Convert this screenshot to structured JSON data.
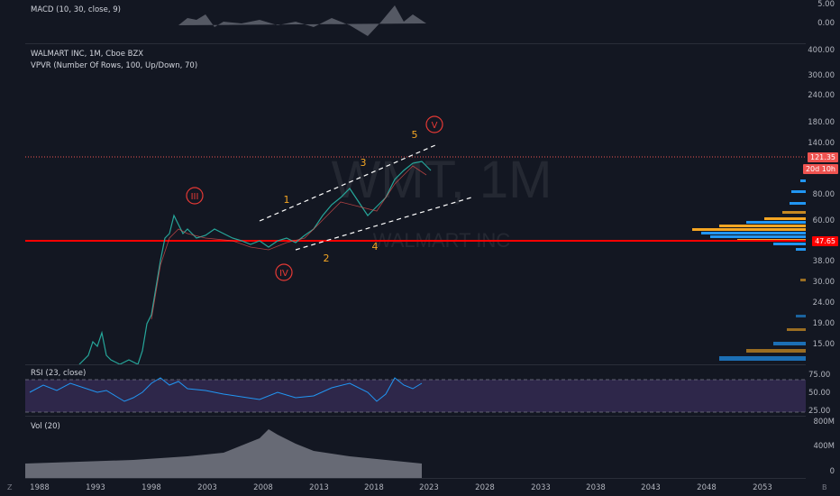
{
  "macd": {
    "label": "MACD (10, 30, close, 9)",
    "ticks": [
      "5.00",
      "0.00"
    ]
  },
  "main": {
    "title": "WALMART INC, 1M, Cboe BZX",
    "indicator": "VPVR (Number Of Rows, 100, Up/Down, 70)",
    "watermark_ticker": "WMT, 1M",
    "watermark_name": "WALMART INC",
    "ticks": [
      "400.00",
      "300.00",
      "240.00",
      "180.00",
      "140.00",
      "80.00",
      "60.00",
      "38.00",
      "30.00",
      "24.00",
      "19.00",
      "15.00"
    ],
    "price_tag": "121.35",
    "countdown_tag": "20d 10h",
    "level_tag": "47.65",
    "waves": {
      "III": "III",
      "IV": "IV",
      "V": "V",
      "w1": "1",
      "w2": "2",
      "w3": "3",
      "w4": "4",
      "w5": "5"
    }
  },
  "rsi": {
    "label": "RSI (23, close)",
    "ticks": [
      "75.00",
      "50.00",
      "25.00"
    ]
  },
  "vol": {
    "label": "Vol (20)",
    "ticks": [
      "800M",
      "400M",
      "0"
    ]
  },
  "xaxis": {
    "ticks": [
      "1988",
      "1993",
      "1998",
      "2003",
      "2008",
      "2013",
      "2018",
      "2023",
      "2028",
      "2033",
      "2038",
      "2043",
      "2048",
      "2053"
    ]
  },
  "corners": {
    "left": "Z",
    "right": "B"
  },
  "colors": {
    "bg": "#131722",
    "up": "#26a69a",
    "down": "#ef5350",
    "level": "#ff0000",
    "wave": "#f5a623",
    "circle": "#e53935",
    "vpvr_up": "#2196f3",
    "vpvr_down": "#f5a623",
    "rsi_band": "#7e57c2"
  }
}
